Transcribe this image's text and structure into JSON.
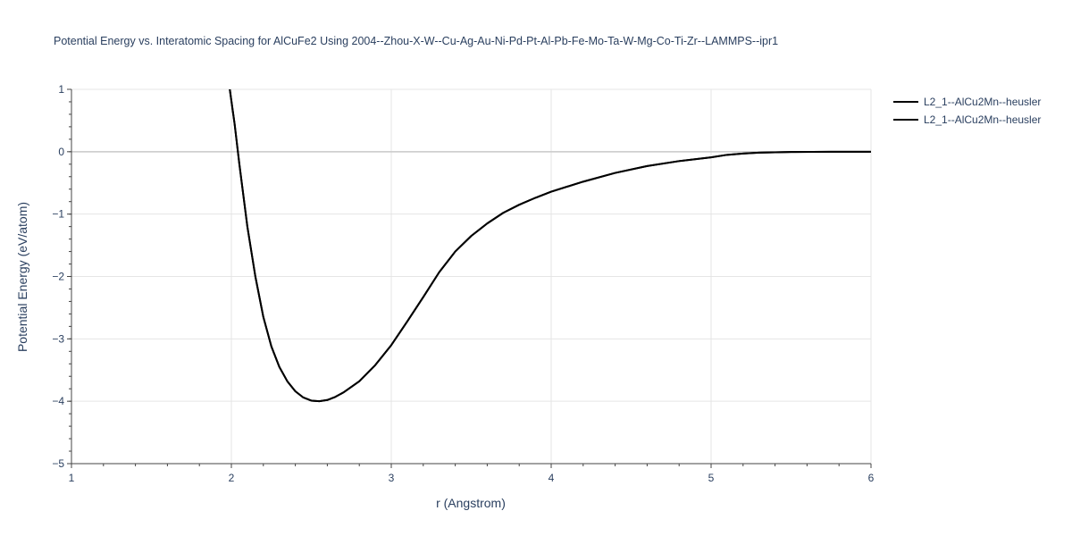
{
  "chart_data": {
    "type": "line",
    "title": "Potential Energy vs. Interatomic Spacing for AlCuFe2 Using 2004--Zhou-X-W--Cu-Ag-Au-Ni-Pd-Pt-Al-Pb-Fe-Mo-Ta-W-Mg-Co-Ti-Zr--LAMMPS--ipr1",
    "xlabel": "r (Angstrom)",
    "ylabel": "Potential Energy (eV/atom)",
    "xlim": [
      1,
      6
    ],
    "ylim": [
      -5,
      1
    ],
    "xticks": [
      "1",
      "2",
      "3",
      "4",
      "5",
      "6"
    ],
    "yticks": [
      "1",
      "0",
      "−1",
      "−2",
      "−3",
      "−4",
      "−5"
    ],
    "grid": true,
    "legend_position": "top-right",
    "line_color": "#000000",
    "series": [
      {
        "name": "L2_1--AlCu2Mn--heusler",
        "x": [
          1.99,
          2.02,
          2.05,
          2.1,
          2.15,
          2.2,
          2.25,
          2.3,
          2.35,
          2.4,
          2.45,
          2.5,
          2.55,
          2.6,
          2.65,
          2.7,
          2.8,
          2.9,
          3.0,
          3.1,
          3.2,
          3.3,
          3.4,
          3.5,
          3.6,
          3.7,
          3.8,
          3.9,
          4.0,
          4.2,
          4.4,
          4.6,
          4.8,
          5.0,
          5.1,
          5.2,
          5.3,
          5.5,
          5.75,
          6.0
        ],
        "y": [
          1.0,
          0.45,
          -0.2,
          -1.2,
          -2.0,
          -2.65,
          -3.12,
          -3.45,
          -3.68,
          -3.84,
          -3.94,
          -3.99,
          -4.0,
          -3.98,
          -3.93,
          -3.86,
          -3.68,
          -3.42,
          -3.1,
          -2.72,
          -2.33,
          -1.93,
          -1.6,
          -1.35,
          -1.15,
          -0.98,
          -0.85,
          -0.74,
          -0.64,
          -0.48,
          -0.34,
          -0.23,
          -0.15,
          -0.09,
          -0.05,
          -0.03,
          -0.015,
          -0.005,
          0.0,
          0.0
        ]
      },
      {
        "name": "L2_1--AlCu2Mn--heusler",
        "x": [
          1.99,
          2.02,
          2.05,
          2.1,
          2.15,
          2.2,
          2.25,
          2.3,
          2.35,
          2.4,
          2.45,
          2.5,
          2.55,
          2.6,
          2.65,
          2.7,
          2.8,
          2.9,
          3.0,
          3.1,
          3.2,
          3.3,
          3.4,
          3.5,
          3.6,
          3.7,
          3.8,
          3.9,
          4.0,
          4.2,
          4.4,
          4.6,
          4.8,
          5.0,
          5.1,
          5.2,
          5.3,
          5.5,
          5.75,
          6.0
        ],
        "y": [
          1.0,
          0.45,
          -0.2,
          -1.2,
          -2.0,
          -2.65,
          -3.12,
          -3.45,
          -3.68,
          -3.84,
          -3.94,
          -3.99,
          -4.0,
          -3.98,
          -3.93,
          -3.86,
          -3.68,
          -3.42,
          -3.1,
          -2.72,
          -2.33,
          -1.93,
          -1.6,
          -1.35,
          -1.15,
          -0.98,
          -0.85,
          -0.74,
          -0.64,
          -0.48,
          -0.34,
          -0.23,
          -0.15,
          -0.09,
          -0.05,
          -0.03,
          -0.015,
          -0.005,
          0.0,
          0.0
        ]
      }
    ]
  }
}
